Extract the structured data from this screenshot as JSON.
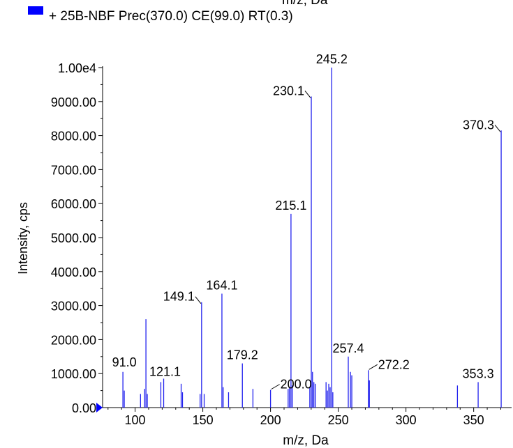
{
  "legend": {
    "label": "+ 25B-NBF Prec(370.0) CE(99.0) RT(0.3)",
    "color": "#0000ff"
  },
  "chart_data": {
    "type": "bar",
    "xlabel": "m/z, Da",
    "ylabel": "Intensity, cps",
    "xlim": [
      76,
      378
    ],
    "ylim": [
      0,
      10000
    ],
    "x_ticks": [
      "100",
      "150",
      "200",
      "250",
      "300",
      "350"
    ],
    "y_ticks": [
      "0.00",
      "1000.00",
      "2000.00",
      "3000.00",
      "4000.00",
      "5000.00",
      "6000.00",
      "7000.00",
      "8000.00",
      "9000.00",
      "1.00e4"
    ],
    "series": [
      {
        "color": "#2222ee",
        "peaks": [
          {
            "mz": 91.0,
            "i": 1050,
            "label": "91.0"
          },
          {
            "mz": 92.0,
            "i": 500
          },
          {
            "mz": 104.0,
            "i": 400
          },
          {
            "mz": 107.0,
            "i": 550
          },
          {
            "mz": 108.0,
            "i": 2600
          },
          {
            "mz": 109.0,
            "i": 400
          },
          {
            "mz": 119.0,
            "i": 750
          },
          {
            "mz": 121.1,
            "i": 850,
            "label": "121.1"
          },
          {
            "mz": 134.0,
            "i": 700
          },
          {
            "mz": 135.0,
            "i": 450
          },
          {
            "mz": 148.0,
            "i": 400
          },
          {
            "mz": 149.1,
            "i": 3100,
            "label": "149.1"
          },
          {
            "mz": 151.0,
            "i": 400
          },
          {
            "mz": 164.1,
            "i": 3350,
            "label": "164.1"
          },
          {
            "mz": 165.0,
            "i": 600
          },
          {
            "mz": 169.0,
            "i": 450
          },
          {
            "mz": 179.2,
            "i": 1300,
            "label": "179.2"
          },
          {
            "mz": 187.0,
            "i": 550
          },
          {
            "mz": 200.0,
            "i": 520,
            "label": "200.0"
          },
          {
            "mz": 213.0,
            "i": 550
          },
          {
            "mz": 214.0,
            "i": 600
          },
          {
            "mz": 215.1,
            "i": 5700,
            "label": "215.1"
          },
          {
            "mz": 216.0,
            "i": 650
          },
          {
            "mz": 229.0,
            "i": 600
          },
          {
            "mz": 230.1,
            "i": 9150,
            "label": "230.1"
          },
          {
            "mz": 231.0,
            "i": 1050
          },
          {
            "mz": 232.0,
            "i": 750
          },
          {
            "mz": 233.0,
            "i": 700
          },
          {
            "mz": 241.0,
            "i": 750
          },
          {
            "mz": 242.0,
            "i": 500
          },
          {
            "mz": 243.0,
            "i": 700
          },
          {
            "mz": 244.0,
            "i": 600
          },
          {
            "mz": 245.2,
            "i": 10000,
            "label": "245.2"
          },
          {
            "mz": 246.0,
            "i": 450
          },
          {
            "mz": 257.4,
            "i": 1500,
            "label": "257.4"
          },
          {
            "mz": 259.0,
            "i": 1050
          },
          {
            "mz": 260.0,
            "i": 950
          },
          {
            "mz": 272.2,
            "i": 1100,
            "label": "272.2"
          },
          {
            "mz": 273.0,
            "i": 800
          },
          {
            "mz": 338.0,
            "i": 650
          },
          {
            "mz": 353.3,
            "i": 750,
            "label": "353.3"
          },
          {
            "mz": 370.3,
            "i": 8150,
            "label": "370.3"
          }
        ]
      }
    ]
  }
}
